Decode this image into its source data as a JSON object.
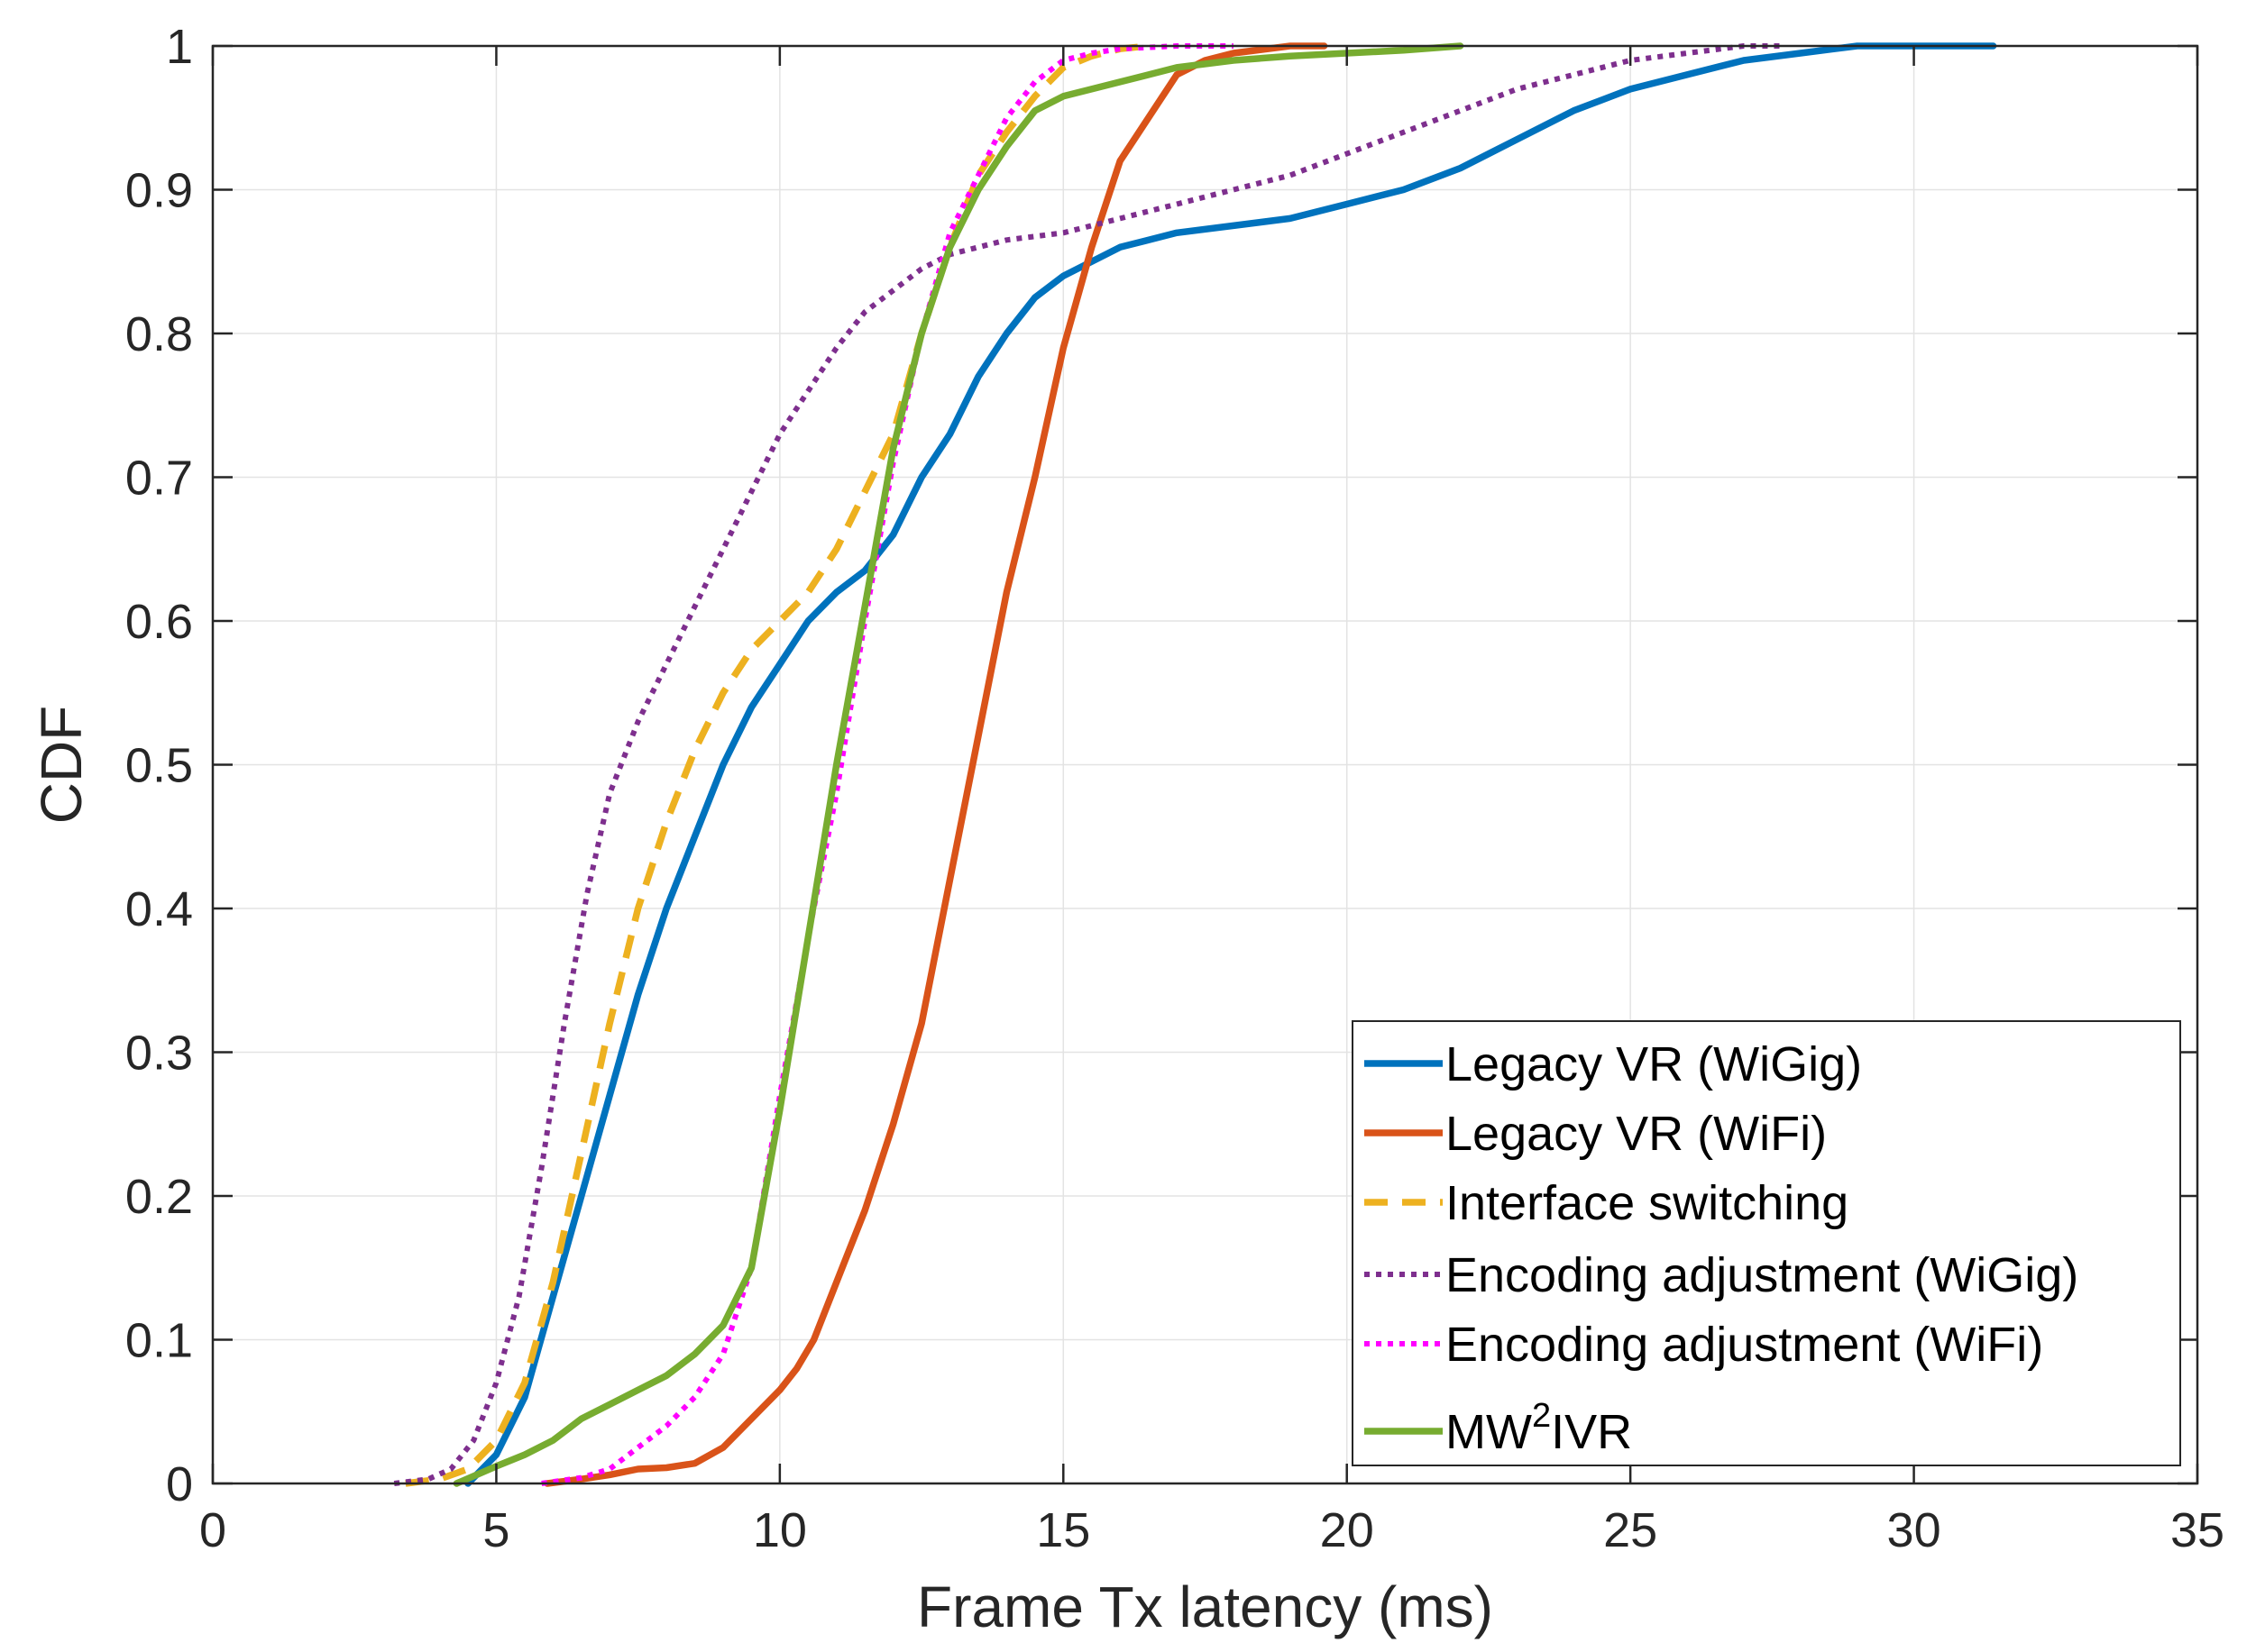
{
  "chart_data": {
    "type": "line",
    "title": "",
    "xlabel": "Frame Tx latency (ms)",
    "ylabel": "CDF",
    "xlim": [
      0,
      35
    ],
    "ylim": [
      0,
      1
    ],
    "xticks": [
      "0",
      "5",
      "10",
      "15",
      "20",
      "25",
      "30",
      "35"
    ],
    "yticks": [
      "0",
      "0.1",
      "0.2",
      "0.3",
      "0.4",
      "0.5",
      "0.6",
      "0.7",
      "0.8",
      "0.9",
      "1"
    ],
    "grid": true,
    "legend_position": "bottom-right",
    "series": [
      {
        "name": "Legacy VR (WiGig)",
        "name_main": "Legacy VR (WiGig)",
        "color": "#0072BD",
        "dash": "solid",
        "points": [
          [
            4.5,
            0.0
          ],
          [
            5.0,
            0.02
          ],
          [
            5.5,
            0.06
          ],
          [
            6.0,
            0.13
          ],
          [
            6.5,
            0.2
          ],
          [
            7.0,
            0.27
          ],
          [
            7.5,
            0.34
          ],
          [
            8.0,
            0.4
          ],
          [
            8.5,
            0.45
          ],
          [
            9.0,
            0.5
          ],
          [
            9.5,
            0.54
          ],
          [
            10.0,
            0.57
          ],
          [
            10.5,
            0.6
          ],
          [
            11.0,
            0.62
          ],
          [
            11.5,
            0.635
          ],
          [
            12.0,
            0.66
          ],
          [
            12.5,
            0.7
          ],
          [
            13.0,
            0.73
          ],
          [
            13.5,
            0.77
          ],
          [
            14.0,
            0.8
          ],
          [
            14.5,
            0.825
          ],
          [
            15.0,
            0.84
          ],
          [
            16.0,
            0.86
          ],
          [
            17.0,
            0.87
          ],
          [
            18.0,
            0.875
          ],
          [
            19.0,
            0.88
          ],
          [
            20.0,
            0.89
          ],
          [
            21.0,
            0.9
          ],
          [
            22.0,
            0.915
          ],
          [
            23.0,
            0.935
          ],
          [
            24.0,
            0.955
          ],
          [
            25.0,
            0.97
          ],
          [
            26.0,
            0.98
          ],
          [
            27.0,
            0.99
          ],
          [
            28.0,
            0.995
          ],
          [
            29.0,
            1.0
          ],
          [
            31.4,
            1.0
          ]
        ]
      },
      {
        "name": "Legacy VR (WiFi)",
        "name_main": "Legacy VR (WiFi)",
        "color": "#D95319",
        "dash": "solid",
        "points": [
          [
            5.9,
            0.0
          ],
          [
            6.5,
            0.003
          ],
          [
            7.0,
            0.006
          ],
          [
            7.5,
            0.01
          ],
          [
            8.0,
            0.011
          ],
          [
            8.5,
            0.014
          ],
          [
            9.0,
            0.025
          ],
          [
            9.5,
            0.045
          ],
          [
            10.0,
            0.065
          ],
          [
            10.3,
            0.08
          ],
          [
            10.6,
            0.1
          ],
          [
            11.0,
            0.14
          ],
          [
            11.5,
            0.19
          ],
          [
            12.0,
            0.25
          ],
          [
            12.5,
            0.32
          ],
          [
            13.0,
            0.42
          ],
          [
            13.5,
            0.52
          ],
          [
            14.0,
            0.62
          ],
          [
            14.5,
            0.7
          ],
          [
            15.0,
            0.79
          ],
          [
            15.5,
            0.86
          ],
          [
            16.0,
            0.92
          ],
          [
            16.5,
            0.95
          ],
          [
            17.0,
            0.98
          ],
          [
            17.5,
            0.99
          ],
          [
            18.0,
            0.995
          ],
          [
            19.0,
            1.0
          ],
          [
            19.6,
            1.0
          ]
        ]
      },
      {
        "name": "Interface switching",
        "name_main": "Interface switching",
        "color": "#EDB120",
        "dash": "dashed",
        "points": [
          [
            3.4,
            0.0
          ],
          [
            4.0,
            0.003
          ],
          [
            4.5,
            0.01
          ],
          [
            5.0,
            0.03
          ],
          [
            5.5,
            0.07
          ],
          [
            6.0,
            0.14
          ],
          [
            6.5,
            0.23
          ],
          [
            7.0,
            0.32
          ],
          [
            7.5,
            0.4
          ],
          [
            8.0,
            0.46
          ],
          [
            8.5,
            0.51
          ],
          [
            9.0,
            0.55
          ],
          [
            9.5,
            0.58
          ],
          [
            10.0,
            0.6
          ],
          [
            10.5,
            0.62
          ],
          [
            11.0,
            0.65
          ],
          [
            11.5,
            0.69
          ],
          [
            12.0,
            0.73
          ],
          [
            12.5,
            0.8
          ],
          [
            13.0,
            0.86
          ],
          [
            13.5,
            0.91
          ],
          [
            14.0,
            0.94
          ],
          [
            14.5,
            0.965
          ],
          [
            15.0,
            0.985
          ],
          [
            15.5,
            0.993
          ],
          [
            16.0,
            0.998
          ],
          [
            16.5,
            1.0
          ]
        ]
      },
      {
        "name": "Encoding adjustment (WiGig)",
        "name_main": "Encoding adjustment (WiGig)",
        "color": "#7E2F8E",
        "dash": "dotted",
        "points": [
          [
            3.2,
            0.0
          ],
          [
            3.8,
            0.003
          ],
          [
            4.2,
            0.01
          ],
          [
            4.6,
            0.03
          ],
          [
            5.0,
            0.07
          ],
          [
            5.4,
            0.13
          ],
          [
            5.8,
            0.22
          ],
          [
            6.2,
            0.32
          ],
          [
            6.6,
            0.41
          ],
          [
            7.0,
            0.48
          ],
          [
            7.5,
            0.53
          ],
          [
            8.0,
            0.57
          ],
          [
            8.5,
            0.61
          ],
          [
            9.0,
            0.65
          ],
          [
            9.5,
            0.69
          ],
          [
            10.0,
            0.73
          ],
          [
            10.5,
            0.76
          ],
          [
            11.0,
            0.79
          ],
          [
            11.5,
            0.815
          ],
          [
            12.0,
            0.83
          ],
          [
            12.5,
            0.845
          ],
          [
            13.0,
            0.855
          ],
          [
            14.0,
            0.865
          ],
          [
            15.0,
            0.87
          ],
          [
            16.0,
            0.88
          ],
          [
            17.0,
            0.89
          ],
          [
            18.0,
            0.9
          ],
          [
            19.0,
            0.91
          ],
          [
            20.0,
            0.925
          ],
          [
            21.0,
            0.94
          ],
          [
            22.0,
            0.955
          ],
          [
            23.0,
            0.97
          ],
          [
            24.0,
            0.98
          ],
          [
            25.0,
            0.99
          ],
          [
            26.0,
            0.995
          ],
          [
            27.0,
            1.0
          ],
          [
            27.7,
            1.0
          ]
        ]
      },
      {
        "name": "Encoding adjustment (WiFi)",
        "name_main": "Encoding adjustment (WiFi)",
        "color": "#FF00FF",
        "dash": "dotted",
        "points": [
          [
            5.8,
            0.0
          ],
          [
            6.5,
            0.004
          ],
          [
            7.0,
            0.01
          ],
          [
            7.5,
            0.025
          ],
          [
            8.0,
            0.04
          ],
          [
            8.5,
            0.06
          ],
          [
            9.0,
            0.09
          ],
          [
            9.5,
            0.15
          ],
          [
            10.0,
            0.27
          ],
          [
            10.5,
            0.38
          ],
          [
            11.0,
            0.48
          ],
          [
            11.5,
            0.6
          ],
          [
            12.0,
            0.71
          ],
          [
            12.5,
            0.8
          ],
          [
            13.0,
            0.87
          ],
          [
            13.5,
            0.91
          ],
          [
            14.0,
            0.95
          ],
          [
            14.5,
            0.975
          ],
          [
            15.0,
            0.99
          ],
          [
            15.5,
            0.995
          ],
          [
            16.0,
            0.998
          ],
          [
            17.0,
            1.0
          ],
          [
            18.0,
            1.0
          ]
        ]
      },
      {
        "name": "MW2IVR",
        "name_main": "MW",
        "name_sup": "2",
        "name_rest": "IVR",
        "color": "#77AC30",
        "dash": "solid",
        "points": [
          [
            4.3,
            0.0
          ],
          [
            5.0,
            0.012
          ],
          [
            5.5,
            0.02
          ],
          [
            6.0,
            0.03
          ],
          [
            6.5,
            0.045
          ],
          [
            7.0,
            0.055
          ],
          [
            7.5,
            0.065
          ],
          [
            8.0,
            0.075
          ],
          [
            8.5,
            0.09
          ],
          [
            9.0,
            0.11
          ],
          [
            9.5,
            0.15
          ],
          [
            10.0,
            0.26
          ],
          [
            10.5,
            0.38
          ],
          [
            11.0,
            0.5
          ],
          [
            11.5,
            0.61
          ],
          [
            12.0,
            0.72
          ],
          [
            12.5,
            0.8
          ],
          [
            13.0,
            0.86
          ],
          [
            13.5,
            0.9
          ],
          [
            14.0,
            0.93
          ],
          [
            14.5,
            0.955
          ],
          [
            15.0,
            0.965
          ],
          [
            16.0,
            0.975
          ],
          [
            17.0,
            0.985
          ],
          [
            18.0,
            0.99
          ],
          [
            19.0,
            0.993
          ],
          [
            20.0,
            0.995
          ],
          [
            21.0,
            0.997
          ],
          [
            22.0,
            1.0
          ]
        ]
      }
    ]
  }
}
